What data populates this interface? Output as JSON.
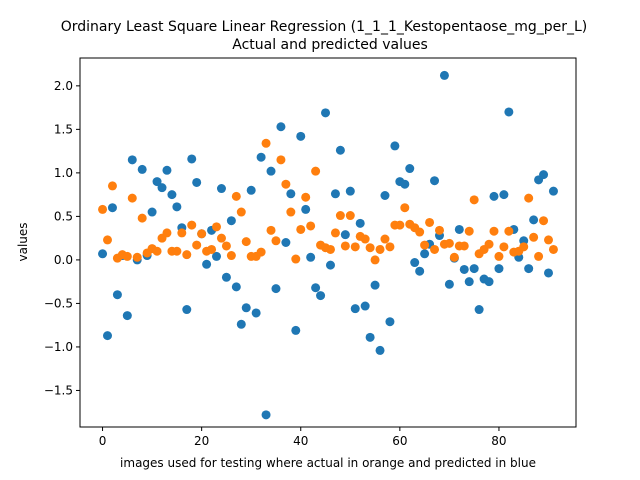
{
  "chart_data": {
    "type": "scatter",
    "title": "Ordinary Least Square Linear Regression (1_1_1_Kestopentaose_mg_per_L)",
    "subtitle": "Actual and predicted values",
    "xlabel": "images used for testing where actual in orange and predicted in blue",
    "ylabel": "values",
    "xlim": [
      -4.55,
      95.55
    ],
    "ylim": [
      -1.92,
      2.32
    ],
    "xticks": [
      0,
      20,
      40,
      60,
      80
    ],
    "yticks": [
      -1.5,
      -1.0,
      -0.5,
      0.0,
      0.5,
      1.0,
      1.5,
      2.0
    ],
    "xtick_labels": [
      "0",
      "20",
      "40",
      "60",
      "80"
    ],
    "ytick_labels": [
      "−1.5",
      "−1.0",
      "−0.5",
      "0.0",
      "0.5",
      "1.0",
      "1.5",
      "2.0"
    ],
    "grid": false,
    "colors": {
      "predicted": "#1f77b4",
      "actual": "#ff7f0e"
    },
    "series": [
      {
        "role": "predicted",
        "values": [
          0.07,
          -0.87,
          0.6,
          -0.4,
          0.05,
          -0.64,
          1.15,
          0.0,
          1.04,
          0.05,
          0.55,
          0.9,
          0.83,
          1.03,
          0.75,
          0.61,
          0.37,
          -0.57,
          1.16,
          0.89,
          0.3,
          -0.05,
          0.34,
          0.04,
          0.82,
          -0.2,
          0.45,
          -0.31,
          -0.74,
          -0.55,
          0.8,
          -0.61,
          1.18,
          -1.78,
          1.02,
          -0.33,
          1.53,
          0.2,
          0.76,
          -0.81,
          1.42,
          0.58,
          0.03,
          -0.32,
          -0.41,
          1.69,
          -0.06,
          0.76,
          1.26,
          0.29,
          0.79,
          -0.56,
          0.42,
          -0.53,
          -0.89,
          -0.29,
          -1.04,
          0.74,
          -0.71,
          1.31,
          0.9,
          0.87,
          1.05,
          -0.03,
          -0.13,
          0.07,
          0.18,
          0.91,
          0.28,
          2.12,
          -0.28,
          0.02,
          0.35,
          -0.11,
          -0.25,
          -0.1,
          -0.57,
          -0.22,
          -0.25,
          0.73,
          -0.1,
          0.75,
          1.7,
          0.35,
          0.03,
          0.22,
          -0.1,
          0.46,
          0.92,
          0.98,
          -0.15,
          0.79
        ]
      },
      {
        "role": "actual",
        "values": [
          0.58,
          0.23,
          0.85,
          0.02,
          0.06,
          0.04,
          0.71,
          0.03,
          0.48,
          0.08,
          0.13,
          0.1,
          0.25,
          0.31,
          0.1,
          0.1,
          0.31,
          0.06,
          0.4,
          0.17,
          0.3,
          0.1,
          0.12,
          0.38,
          0.25,
          0.16,
          0.05,
          0.73,
          0.55,
          0.21,
          0.04,
          0.04,
          0.09,
          1.34,
          0.34,
          0.22,
          1.15,
          0.87,
          0.55,
          0.01,
          0.35,
          0.72,
          0.39,
          1.02,
          0.17,
          0.14,
          0.12,
          0.31,
          0.51,
          0.16,
          0.51,
          0.15,
          0.27,
          0.24,
          0.14,
          0.0,
          0.12,
          0.24,
          0.15,
          0.4,
          0.4,
          0.6,
          0.41,
          0.37,
          0.32,
          0.17,
          0.43,
          0.12,
          0.34,
          0.18,
          0.19,
          0.03,
          0.16,
          0.16,
          0.33,
          0.69,
          0.07,
          0.12,
          0.18,
          0.33,
          0.04,
          0.15,
          0.33,
          0.09,
          0.1,
          0.15,
          0.71,
          0.26,
          0.04,
          0.45,
          0.23,
          0.12
        ]
      }
    ]
  }
}
